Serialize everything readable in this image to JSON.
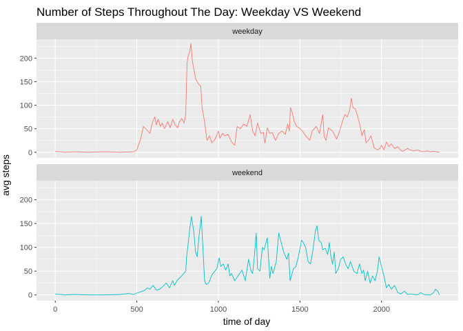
{
  "chart_data": {
    "type": "line",
    "title": "Number of Steps Throughout The Day: Weekday VS Weekend",
    "xlabel": "time of day",
    "ylabel": "avg steps",
    "xlim": [
      -115,
      2470
    ],
    "ylim": [
      -12,
      240
    ],
    "x_ticks": [
      0,
      500,
      1000,
      1500,
      2000
    ],
    "y_ticks": [
      0,
      50,
      100,
      150,
      200
    ],
    "grid": true,
    "facets": [
      "weekday",
      "weekend"
    ],
    "series": [
      {
        "name": "weekday",
        "color": "#F8766D",
        "points": [
          [
            0,
            2
          ],
          [
            60,
            0
          ],
          [
            120,
            1
          ],
          [
            200,
            0
          ],
          [
            300,
            1
          ],
          [
            400,
            0
          ],
          [
            480,
            1
          ],
          [
            500,
            5
          ],
          [
            525,
            30
          ],
          [
            540,
            55
          ],
          [
            560,
            48
          ],
          [
            580,
            40
          ],
          [
            595,
            62
          ],
          [
            610,
            75
          ],
          [
            620,
            58
          ],
          [
            630,
            70
          ],
          [
            645,
            55
          ],
          [
            655,
            62
          ],
          [
            670,
            50
          ],
          [
            690,
            65
          ],
          [
            705,
            52
          ],
          [
            720,
            70
          ],
          [
            735,
            58
          ],
          [
            750,
            52
          ],
          [
            760,
            64
          ],
          [
            775,
            72
          ],
          [
            790,
            62
          ],
          [
            800,
            82
          ],
          [
            808,
            190
          ],
          [
            815,
            205
          ],
          [
            825,
            215
          ],
          [
            832,
            231
          ],
          [
            840,
            195
          ],
          [
            850,
            175
          ],
          [
            862,
            155
          ],
          [
            878,
            145
          ],
          [
            892,
            140
          ],
          [
            900,
            95
          ],
          [
            915,
            65
          ],
          [
            930,
            25
          ],
          [
            945,
            35
          ],
          [
            960,
            20
          ],
          [
            980,
            28
          ],
          [
            1000,
            45
          ],
          [
            1010,
            30
          ],
          [
            1025,
            40
          ],
          [
            1040,
            35
          ],
          [
            1060,
            38
          ],
          [
            1080,
            22
          ],
          [
            1100,
            15
          ],
          [
            1115,
            55
          ],
          [
            1135,
            50
          ],
          [
            1155,
            60
          ],
          [
            1175,
            55
          ],
          [
            1195,
            80
          ],
          [
            1210,
            45
          ],
          [
            1225,
            35
          ],
          [
            1240,
            62
          ],
          [
            1260,
            40
          ],
          [
            1275,
            42
          ],
          [
            1285,
            20
          ],
          [
            1300,
            52
          ],
          [
            1315,
            40
          ],
          [
            1330,
            42
          ],
          [
            1350,
            25
          ],
          [
            1370,
            40
          ],
          [
            1390,
            45
          ],
          [
            1410,
            38
          ],
          [
            1425,
            60
          ],
          [
            1435,
            45
          ],
          [
            1442,
            95
          ],
          [
            1450,
            88
          ],
          [
            1465,
            65
          ],
          [
            1480,
            55
          ],
          [
            1495,
            52
          ],
          [
            1515,
            45
          ],
          [
            1535,
            35
          ],
          [
            1560,
            25
          ],
          [
            1575,
            45
          ],
          [
            1600,
            55
          ],
          [
            1620,
            40
          ],
          [
            1640,
            80
          ],
          [
            1648,
            35
          ],
          [
            1660,
            25
          ],
          [
            1675,
            52
          ],
          [
            1700,
            45
          ],
          [
            1725,
            28
          ],
          [
            1740,
            42
          ],
          [
            1760,
            65
          ],
          [
            1775,
            80
          ],
          [
            1790,
            75
          ],
          [
            1805,
            90
          ],
          [
            1815,
            115
          ],
          [
            1825,
            95
          ],
          [
            1840,
            92
          ],
          [
            1855,
            75
          ],
          [
            1870,
            55
          ],
          [
            1880,
            35
          ],
          [
            1895,
            48
          ],
          [
            1905,
            20
          ],
          [
            1920,
            25
          ],
          [
            1935,
            35
          ],
          [
            1955,
            10
          ],
          [
            1975,
            5
          ],
          [
            1990,
            8
          ],
          [
            2000,
            15
          ],
          [
            2015,
            5
          ],
          [
            2030,
            22
          ],
          [
            2045,
            12
          ],
          [
            2060,
            18
          ],
          [
            2080,
            8
          ],
          [
            2100,
            12
          ],
          [
            2115,
            5
          ],
          [
            2130,
            2
          ],
          [
            2160,
            8
          ],
          [
            2175,
            5
          ],
          [
            2200,
            3
          ],
          [
            2220,
            5
          ],
          [
            2250,
            1
          ],
          [
            2280,
            3
          ],
          [
            2300,
            1
          ],
          [
            2320,
            2
          ],
          [
            2355,
            0
          ]
        ]
      },
      {
        "name": "weekend",
        "color": "#00BFC4",
        "points": [
          [
            0,
            2
          ],
          [
            60,
            0
          ],
          [
            120,
            1
          ],
          [
            200,
            0
          ],
          [
            300,
            0
          ],
          [
            400,
            1
          ],
          [
            450,
            3
          ],
          [
            480,
            1
          ],
          [
            500,
            4
          ],
          [
            520,
            6
          ],
          [
            550,
            10
          ],
          [
            565,
            15
          ],
          [
            580,
            12
          ],
          [
            600,
            20
          ],
          [
            620,
            10
          ],
          [
            640,
            12
          ],
          [
            660,
            18
          ],
          [
            680,
            25
          ],
          [
            700,
            15
          ],
          [
            720,
            30
          ],
          [
            730,
            20
          ],
          [
            750,
            32
          ],
          [
            770,
            38
          ],
          [
            800,
            50
          ],
          [
            805,
            80
          ],
          [
            812,
            100
          ],
          [
            825,
            140
          ],
          [
            835,
            165
          ],
          [
            850,
            130
          ],
          [
            860,
            90
          ],
          [
            870,
            80
          ],
          [
            880,
            120
          ],
          [
            895,
            165
          ],
          [
            905,
            100
          ],
          [
            915,
            30
          ],
          [
            925,
            22
          ],
          [
            940,
            25
          ],
          [
            960,
            42
          ],
          [
            990,
            55
          ],
          [
            1005,
            78
          ],
          [
            1015,
            60
          ],
          [
            1030,
            65
          ],
          [
            1045,
            52
          ],
          [
            1060,
            65
          ],
          [
            1070,
            40
          ],
          [
            1080,
            45
          ],
          [
            1100,
            30
          ],
          [
            1120,
            40
          ],
          [
            1145,
            52
          ],
          [
            1165,
            30
          ],
          [
            1185,
            75
          ],
          [
            1200,
            50
          ],
          [
            1210,
            45
          ],
          [
            1220,
            80
          ],
          [
            1232,
            130
          ],
          [
            1240,
            55
          ],
          [
            1255,
            50
          ],
          [
            1270,
            100
          ],
          [
            1280,
            95
          ],
          [
            1300,
            120
          ],
          [
            1315,
            35
          ],
          [
            1325,
            60
          ],
          [
            1335,
            45
          ],
          [
            1355,
            70
          ],
          [
            1370,
            130
          ],
          [
            1385,
            110
          ],
          [
            1400,
            90
          ],
          [
            1420,
            75
          ],
          [
            1430,
            88
          ],
          [
            1440,
            30
          ],
          [
            1460,
            55
          ],
          [
            1475,
            60
          ],
          [
            1490,
            80
          ],
          [
            1510,
            115
          ],
          [
            1520,
            110
          ],
          [
            1535,
            100
          ],
          [
            1550,
            70
          ],
          [
            1565,
            65
          ],
          [
            1580,
            95
          ],
          [
            1595,
            135
          ],
          [
            1605,
            145
          ],
          [
            1615,
            115
          ],
          [
            1630,
            110
          ],
          [
            1640,
            95
          ],
          [
            1655,
            98
          ],
          [
            1670,
            85
          ],
          [
            1680,
            110
          ],
          [
            1690,
            80
          ],
          [
            1700,
            65
          ],
          [
            1710,
            90
          ],
          [
            1720,
            45
          ],
          [
            1735,
            55
          ],
          [
            1750,
            75
          ],
          [
            1765,
            80
          ],
          [
            1780,
            65
          ],
          [
            1795,
            55
          ],
          [
            1810,
            70
          ],
          [
            1830,
            50
          ],
          [
            1850,
            45
          ],
          [
            1865,
            65
          ],
          [
            1880,
            45
          ],
          [
            1890,
            52
          ],
          [
            1900,
            30
          ],
          [
            1915,
            50
          ],
          [
            1930,
            25
          ],
          [
            1945,
            40
          ],
          [
            1960,
            30
          ],
          [
            1975,
            50
          ],
          [
            1985,
            80
          ],
          [
            2000,
            60
          ],
          [
            2015,
            40
          ],
          [
            2030,
            15
          ],
          [
            2045,
            22
          ],
          [
            2060,
            12
          ],
          [
            2080,
            20
          ],
          [
            2100,
            5
          ],
          [
            2120,
            2
          ],
          [
            2140,
            8
          ],
          [
            2160,
            1
          ],
          [
            2180,
            2
          ],
          [
            2200,
            1
          ],
          [
            2220,
            0
          ],
          [
            2240,
            5
          ],
          [
            2260,
            1
          ],
          [
            2280,
            0
          ],
          [
            2300,
            0
          ],
          [
            2320,
            5
          ],
          [
            2330,
            12
          ],
          [
            2345,
            8
          ],
          [
            2355,
            0
          ]
        ]
      }
    ]
  }
}
